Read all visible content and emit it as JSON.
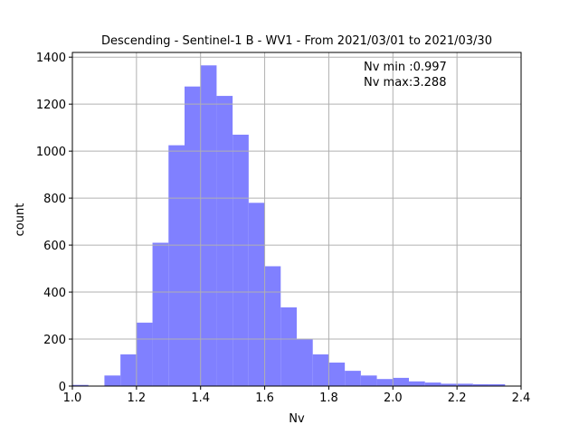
{
  "chart_data": {
    "type": "bar",
    "title": "Descending - Sentinel-1 B - WV1 - From 2021/03/01 to 2021/03/30",
    "xlabel": "Nv",
    "ylabel": "count",
    "xlim": [
      1.0,
      2.4
    ],
    "ylim": [
      0,
      1420
    ],
    "grid": true,
    "bar_color": "#8080ff",
    "bin_edges": [
      1.0,
      1.05,
      1.1,
      1.15,
      1.2,
      1.25,
      1.3,
      1.35,
      1.4,
      1.45,
      1.5,
      1.55,
      1.6,
      1.65,
      1.7,
      1.75,
      1.8,
      1.85,
      1.9,
      1.95,
      2.0,
      2.05,
      2.1,
      2.15,
      2.2,
      2.25,
      2.3,
      2.35
    ],
    "values": [
      5,
      0,
      45,
      135,
      270,
      610,
      1025,
      1275,
      1365,
      1235,
      1070,
      780,
      510,
      335,
      200,
      135,
      100,
      65,
      45,
      30,
      35,
      20,
      15,
      10,
      10,
      8,
      8
    ],
    "xticks": [
      "1.0",
      "1.2",
      "1.4",
      "1.6",
      "1.8",
      "2.0",
      "2.2",
      "2.4"
    ],
    "xtick_values": [
      1.0,
      1.2,
      1.4,
      1.6,
      1.8,
      2.0,
      2.2,
      2.4
    ],
    "yticks": [
      "0",
      "200",
      "400",
      "600",
      "800",
      "1000",
      "1200",
      "1400"
    ],
    "ytick_values": [
      0,
      200,
      400,
      600,
      800,
      1000,
      1200,
      1400
    ],
    "annotations": [
      "Nv min :0.997",
      "Nv max:3.288"
    ]
  }
}
